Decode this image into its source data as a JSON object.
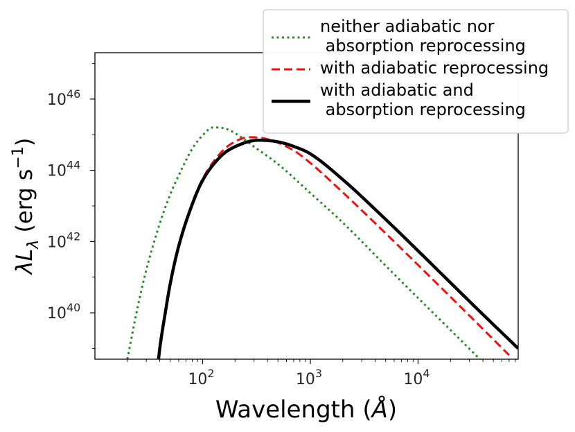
{
  "chart_data": {
    "type": "line",
    "xscale": "log",
    "yscale": "log",
    "xlabel": "Wavelength (Å)",
    "ylabel": "λL_λ (erg s^-1)",
    "xlim": [
      10,
      85000
    ],
    "ylim": [
      5e+38,
      2e+47
    ],
    "xticks": [
      {
        "value": 100,
        "base": "10",
        "exp": "2"
      },
      {
        "value": 1000,
        "base": "10",
        "exp": "3"
      },
      {
        "value": 10000,
        "base": "10",
        "exp": "4"
      }
    ],
    "yticks": [
      {
        "value": 1e+40,
        "base": "10",
        "exp": "40"
      },
      {
        "value": 1e+42,
        "base": "10",
        "exp": "42"
      },
      {
        "value": 1e+44,
        "base": "10",
        "exp": "44"
      },
      {
        "value": 1e+46,
        "base": "10",
        "exp": "46"
      }
    ],
    "legend": {
      "position": "top-right"
    },
    "series": [
      {
        "name": "neither adiabatic nor absorption reprocessing",
        "legend_lines": [
          "neither adiabatic nor",
          " absorption reprocessing"
        ],
        "color": "#2a8a2a",
        "style": "dotted",
        "peak_wavelength": 125,
        "peak_lum": 1.6e+45,
        "x": [
          20,
          25,
          30,
          40,
          50,
          60,
          80,
          100,
          125,
          160,
          200,
          300,
          500,
          1000,
          2000,
          5000,
          10000,
          20000,
          40000
        ],
        "y": [
          5e+38,
          1.5e+40,
          1.6e+41,
          3.2e+42,
          2.1e+43,
          7.2e+43,
          4e+44,
          9.6e+44,
          1.6e+45,
          1.5e+45,
          1.1e+45,
          4.6e+44,
          1.5e+44,
          2.3e+43,
          3.4e+42,
          2.1e+41,
          2.6e+40,
          3.3e+39,
          4.1e+38
        ]
      },
      {
        "name": "with adiabatic reprocessing",
        "legend_lines": [
          "with adiabatic reprocessing"
        ],
        "color": "#ee1111",
        "style": "dashed",
        "peak_wavelength": 270,
        "peak_lum": 8.5e+44,
        "x": [
          38,
          40,
          45,
          50,
          60,
          80,
          100,
          150,
          200,
          270,
          400,
          700,
          1000,
          2000,
          5000,
          10000,
          20000,
          40000,
          70000
        ],
        "y": [
          2.5e+38,
          1e+39,
          1e+40,
          6.5e+40,
          7.5e+41,
          1.2e+43,
          5.8e+43,
          3.3e+44,
          6.4e+44,
          8.5e+44,
          7.5e+44,
          3.6e+44,
          1.6e+44,
          2.4e+43,
          1.7e+42,
          2.2e+41,
          2.8e+40,
          3.5e+39,
          6.5e+38
        ]
      },
      {
        "name": "with adiabatic and absorption reprocessing",
        "legend_lines": [
          "with adiabatic and",
          " absorption reprocessing"
        ],
        "color": "#000000",
        "style": "solid",
        "peak_wavelength": 330,
        "peak_lum": 7e+44,
        "x": [
          38,
          40,
          45,
          50,
          60,
          80,
          100,
          150,
          200,
          330,
          500,
          700,
          1000,
          2000,
          5000,
          10000,
          20000,
          40000,
          85000
        ],
        "y": [
          2.5e+38,
          1e+39,
          1e+40,
          6.5e+40,
          7.5e+41,
          1.1e+43,
          5.2e+43,
          2.6e+44,
          4.6e+44,
          7e+44,
          6.3e+44,
          4.7e+44,
          2.9e+44,
          5.5e+43,
          4.2e+42,
          5.5e+41,
          7e+40,
          9e+39,
          1e+39
        ]
      }
    ]
  }
}
